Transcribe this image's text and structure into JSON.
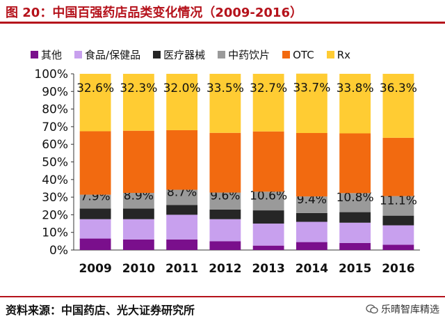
{
  "header": {
    "title": "图 20：中国百强药店品类变化情况（2009-2016）"
  },
  "footer": {
    "source": "资料来源：中国药店、光大证券研究所",
    "watermark": "乐晴智库精选"
  },
  "chart_data": {
    "type": "bar",
    "stacked": true,
    "title": "",
    "xlabel": "",
    "ylabel": "",
    "ylim": [
      0,
      100
    ],
    "y_tick_labels": [
      "0%",
      "10%",
      "20%",
      "30%",
      "40%",
      "50%",
      "60%",
      "70%",
      "80%",
      "90%",
      "100%"
    ],
    "categories": [
      "2009",
      "2010",
      "2011",
      "2012",
      "2013",
      "2014",
      "2015",
      "2016"
    ],
    "series": [
      {
        "name": "其他",
        "color": "#7a0f8c",
        "values": [
          6.5,
          6.0,
          6.0,
          5.0,
          2.5,
          4.5,
          4.0,
          3.0
        ]
      },
      {
        "name": "食品/保健品",
        "color": "#c8a0ee",
        "values": [
          11.0,
          11.5,
          14.0,
          12.5,
          12.5,
          11.5,
          11.5,
          11.0
        ]
      },
      {
        "name": "医疗器械",
        "color": "#262626",
        "values": [
          6.0,
          6.0,
          5.5,
          5.5,
          7.5,
          5.0,
          6.0,
          5.5
        ]
      },
      {
        "name": "中药饮片",
        "color": "#9a9a9a",
        "values": [
          7.9,
          8.9,
          8.7,
          9.6,
          10.6,
          9.4,
          10.8,
          11.1
        ],
        "labels": [
          "7.9%",
          "8.9%",
          "8.7%",
          "9.6%",
          "10.6%",
          "9.4%",
          "10.8%",
          "11.1%"
        ]
      },
      {
        "name": "OTC",
        "color": "#f26a10",
        "values": [
          36.0,
          35.3,
          33.8,
          33.9,
          34.2,
          36.0,
          33.9,
          33.1
        ]
      },
      {
        "name": "Rx",
        "color": "#ffcc33",
        "values": [
          32.6,
          32.3,
          32.0,
          33.5,
          32.7,
          33.7,
          33.8,
          36.3
        ],
        "labels": [
          "32.6%",
          "32.3%",
          "32.0%",
          "33.5%",
          "32.7%",
          "33.7%",
          "33.8%",
          "36.3%"
        ]
      }
    ],
    "legend": "top"
  }
}
